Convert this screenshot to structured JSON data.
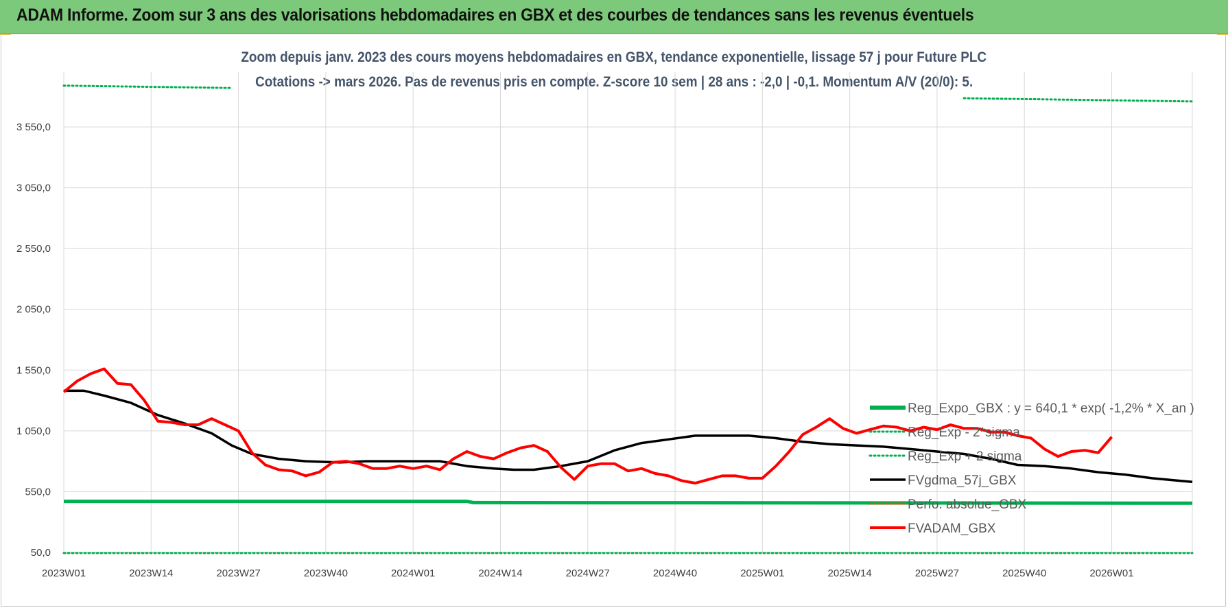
{
  "header": {
    "title": "ADAM Informe. Zoom sur 3 ans des valorisations hebdomadaires en GBX et des courbes de tendances sans les revenus éventuels"
  },
  "chart_data": {
    "type": "line",
    "title_line1": "Zoom depuis janv. 2023 des cours moyens hebdomadaires en GBX, tendance exponentielle, lissage 57 j pour Future PLC",
    "title_line2": "Cotations -> mars 2026. Pas de revenus pris en compte. Z-score 10 sem  | 28 ans : -2,0 | -0,1.  Momentum A/V (20/0): 5.",
    "ylim": [
      50,
      3800
    ],
    "yticks": [
      "50,0",
      "550,0",
      "1 050,0",
      "1 550,0",
      "2 050,0",
      "2 550,0",
      "3 050,0",
      "3 550,0"
    ],
    "ytick_values": [
      50,
      550,
      1050,
      1550,
      2050,
      2550,
      3050,
      3550
    ],
    "xticks": [
      "2023W01",
      "2023W14",
      "2023W27",
      "2023W40",
      "2024W01",
      "2024W14",
      "2024W27",
      "2024W40",
      "2025W01",
      "2025W14",
      "2025W27",
      "2025W40",
      "2026W01"
    ],
    "xtick_index": [
      0,
      13,
      26,
      39,
      52,
      65,
      78,
      91,
      104,
      117,
      130,
      143,
      156
    ],
    "n_weeks": 169,
    "grid": true,
    "legend_position": "bottom-right",
    "colors": {
      "reg_expo": "#00b050",
      "sigma": "#00b050",
      "fvgdma": "#000000",
      "perfo": "#c55a11",
      "fvadam": "#ff0000",
      "title": "#44546a",
      "banner": "#7dc97b",
      "grid": "#d9d9d9"
    },
    "series": [
      {
        "key": "reg_expo",
        "name": "Reg_Expo_GBX : y = 640,1 * exp( -1,2% *  X_an )",
        "style": "thick",
        "points": [
          [
            0,
            470
          ],
          [
            60,
            470
          ],
          [
            61,
            460
          ],
          [
            168,
            455
          ]
        ]
      },
      {
        "key": "sigma_minus",
        "name": "Reg_Exp - 2*sigma",
        "style": "dotted",
        "points": [
          [
            0,
            45
          ],
          [
            168,
            45
          ]
        ]
      },
      {
        "key": "sigma_plus",
        "name": "Reg_Exp + 2 sigma",
        "style": "dotted",
        "points": [
          [
            0,
            3890
          ],
          [
            168,
            3760
          ]
        ]
      },
      {
        "key": "fvgdma",
        "name": "FVgdma_57j_GBX",
        "style": "solid",
        "points": [
          [
            0,
            1380
          ],
          [
            3,
            1380
          ],
          [
            6,
            1340
          ],
          [
            10,
            1280
          ],
          [
            14,
            1180
          ],
          [
            18,
            1110
          ],
          [
            22,
            1030
          ],
          [
            25,
            930
          ],
          [
            28,
            860
          ],
          [
            32,
            820
          ],
          [
            36,
            800
          ],
          [
            41,
            790
          ],
          [
            45,
            800
          ],
          [
            52,
            800
          ],
          [
            56,
            800
          ],
          [
            60,
            760
          ],
          [
            64,
            740
          ],
          [
            67,
            730
          ],
          [
            70,
            730
          ],
          [
            74,
            760
          ],
          [
            78,
            800
          ],
          [
            82,
            890
          ],
          [
            86,
            950
          ],
          [
            90,
            980
          ],
          [
            94,
            1010
          ],
          [
            98,
            1010
          ],
          [
            102,
            1010
          ],
          [
            106,
            990
          ],
          [
            110,
            960
          ],
          [
            114,
            940
          ],
          [
            118,
            930
          ],
          [
            122,
            920
          ],
          [
            126,
            900
          ],
          [
            130,
            880
          ],
          [
            134,
            860
          ],
          [
            138,
            820
          ],
          [
            142,
            770
          ],
          [
            146,
            760
          ],
          [
            150,
            740
          ],
          [
            154,
            710
          ],
          [
            158,
            690
          ],
          [
            162,
            660
          ],
          [
            166,
            640
          ],
          [
            168,
            630
          ]
        ]
      },
      {
        "key": "perfo",
        "name": "Perfo. absolue_GBX",
        "style": "dotted",
        "points": []
      },
      {
        "key": "fvadam",
        "name": "FVADAM_GBX",
        "style": "solid",
        "points": [
          [
            0,
            1370
          ],
          [
            2,
            1460
          ],
          [
            4,
            1520
          ],
          [
            6,
            1560
          ],
          [
            8,
            1440
          ],
          [
            10,
            1430
          ],
          [
            12,
            1300
          ],
          [
            14,
            1130
          ],
          [
            16,
            1120
          ],
          [
            18,
            1100
          ],
          [
            20,
            1100
          ],
          [
            22,
            1150
          ],
          [
            24,
            1100
          ],
          [
            26,
            1050
          ],
          [
            28,
            870
          ],
          [
            30,
            770
          ],
          [
            32,
            730
          ],
          [
            34,
            720
          ],
          [
            36,
            680
          ],
          [
            38,
            710
          ],
          [
            40,
            790
          ],
          [
            42,
            800
          ],
          [
            44,
            780
          ],
          [
            46,
            740
          ],
          [
            48,
            740
          ],
          [
            50,
            760
          ],
          [
            52,
            740
          ],
          [
            54,
            760
          ],
          [
            56,
            730
          ],
          [
            58,
            820
          ],
          [
            60,
            880
          ],
          [
            62,
            840
          ],
          [
            64,
            820
          ],
          [
            66,
            870
          ],
          [
            68,
            910
          ],
          [
            70,
            930
          ],
          [
            72,
            880
          ],
          [
            74,
            750
          ],
          [
            76,
            650
          ],
          [
            78,
            760
          ],
          [
            80,
            780
          ],
          [
            82,
            780
          ],
          [
            84,
            720
          ],
          [
            86,
            740
          ],
          [
            88,
            700
          ],
          [
            90,
            680
          ],
          [
            92,
            640
          ],
          [
            94,
            620
          ],
          [
            96,
            650
          ],
          [
            98,
            680
          ],
          [
            100,
            680
          ],
          [
            102,
            660
          ],
          [
            104,
            660
          ],
          [
            106,
            760
          ],
          [
            108,
            880
          ],
          [
            110,
            1020
          ],
          [
            112,
            1080
          ],
          [
            114,
            1150
          ],
          [
            116,
            1070
          ],
          [
            118,
            1030
          ],
          [
            120,
            1060
          ],
          [
            122,
            1090
          ],
          [
            124,
            1080
          ],
          [
            126,
            1050
          ],
          [
            128,
            1080
          ],
          [
            130,
            1060
          ],
          [
            132,
            1100
          ],
          [
            134,
            1070
          ],
          [
            136,
            1070
          ],
          [
            138,
            1040
          ],
          [
            140,
            1040
          ],
          [
            142,
            1010
          ],
          [
            144,
            990
          ],
          [
            146,
            900
          ],
          [
            148,
            840
          ],
          [
            150,
            880
          ],
          [
            152,
            890
          ],
          [
            154,
            870
          ],
          [
            156,
            1000
          ]
        ]
      }
    ]
  }
}
